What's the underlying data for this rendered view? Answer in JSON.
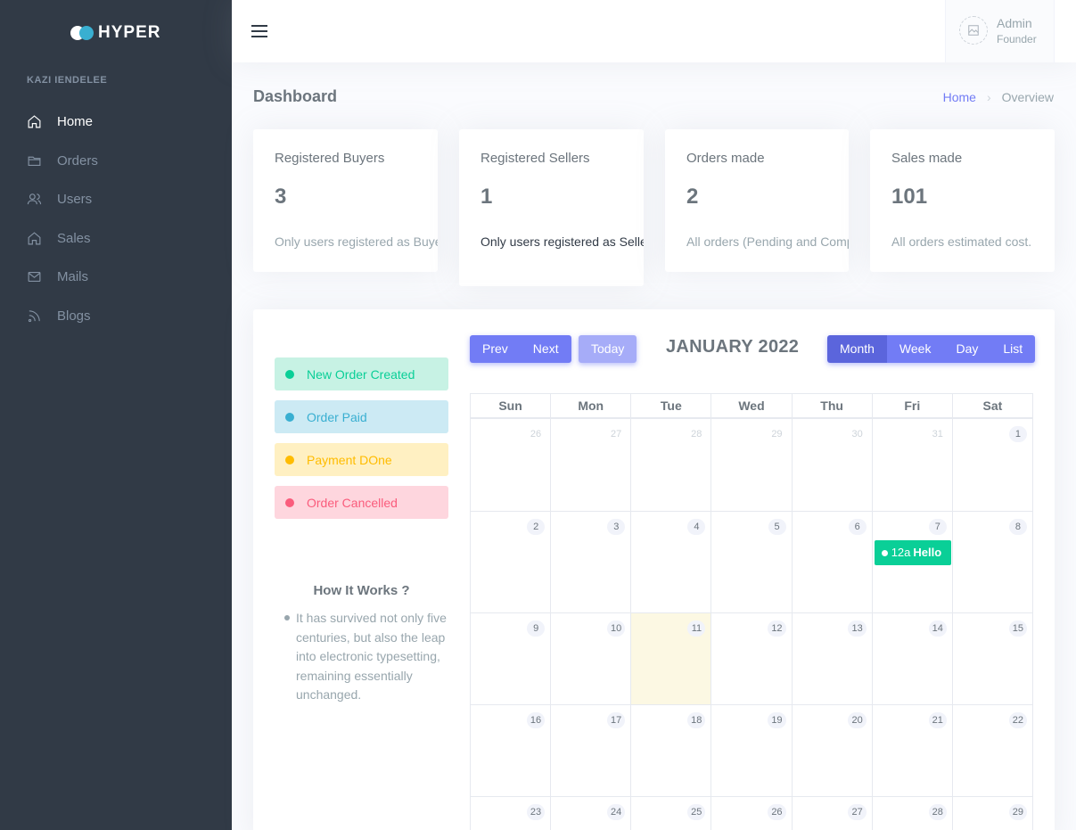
{
  "brand": {
    "name": "HYPER"
  },
  "sidebar": {
    "section_title": "KAZI IENDELEE",
    "items": [
      {
        "label": "Home",
        "icon": "home-icon",
        "active": true
      },
      {
        "label": "Orders",
        "icon": "folder-icon",
        "active": false
      },
      {
        "label": "Users",
        "icon": "users-icon",
        "active": false
      },
      {
        "label": "Sales",
        "icon": "home-icon",
        "active": false
      },
      {
        "label": "Mails",
        "icon": "mail-icon",
        "active": false
      },
      {
        "label": "Blogs",
        "icon": "rss-icon",
        "active": false
      }
    ]
  },
  "topbar": {
    "user": {
      "name": "Admin",
      "role": "Founder"
    }
  },
  "page": {
    "title": "Dashboard",
    "breadcrumb": {
      "home": "Home",
      "current": "Overview"
    }
  },
  "stats": [
    {
      "title": "Registered Buyers",
      "value": "3",
      "desc": "Only users registered as Buyers"
    },
    {
      "title": "Registered Sellers",
      "value": "1",
      "desc": "Only users registered as Sellers"
    },
    {
      "title": "Orders made",
      "value": "2",
      "desc": "All orders (Pending and Completed)"
    },
    {
      "title": "Sales made",
      "value": "101",
      "desc": "All orders estimated cost."
    }
  ],
  "legend": [
    {
      "label": "New Order Created",
      "color": "#0acf97"
    },
    {
      "label": "Order Paid",
      "color": "#39afd1"
    },
    {
      "label": "Payment DOne",
      "color": "#ffbc00"
    },
    {
      "label": "Order Cancelled",
      "color": "#fa5c7c"
    }
  ],
  "how_it_works": {
    "title": "How It Works ?",
    "text": "It has survived not only five centuries, but also the leap into electronic typesetting, remaining essentially unchanged."
  },
  "calendar": {
    "title": "JANUARY 2022",
    "nav": {
      "prev": "Prev",
      "next": "Next",
      "today": "Today"
    },
    "views": [
      "Month",
      "Week",
      "Day",
      "List"
    ],
    "active_view": "Month",
    "weekdays": [
      "Sun",
      "Mon",
      "Tue",
      "Wed",
      "Thu",
      "Fri",
      "Sat"
    ],
    "today": 11,
    "weeks": [
      [
        {
          "d": "26",
          "o": true
        },
        {
          "d": "27",
          "o": true
        },
        {
          "d": "28",
          "o": true
        },
        {
          "d": "29",
          "o": true
        },
        {
          "d": "30",
          "o": true
        },
        {
          "d": "31",
          "o": true
        },
        {
          "d": "1"
        }
      ],
      [
        {
          "d": "2"
        },
        {
          "d": "3"
        },
        {
          "d": "4"
        },
        {
          "d": "5"
        },
        {
          "d": "6"
        },
        {
          "d": "7"
        },
        {
          "d": "8"
        }
      ],
      [
        {
          "d": "9"
        },
        {
          "d": "10"
        },
        {
          "d": "11"
        },
        {
          "d": "12"
        },
        {
          "d": "13"
        },
        {
          "d": "14"
        },
        {
          "d": "15"
        }
      ],
      [
        {
          "d": "16"
        },
        {
          "d": "17"
        },
        {
          "d": "18"
        },
        {
          "d": "19"
        },
        {
          "d": "20"
        },
        {
          "d": "21"
        },
        {
          "d": "22"
        }
      ],
      [
        {
          "d": "23"
        },
        {
          "d": "24"
        },
        {
          "d": "25"
        },
        {
          "d": "26"
        },
        {
          "d": "27"
        },
        {
          "d": "28"
        },
        {
          "d": "29"
        }
      ]
    ],
    "events": [
      {
        "day": "7",
        "time": "12a",
        "title": "Hello",
        "color": "#0acf97"
      }
    ]
  }
}
